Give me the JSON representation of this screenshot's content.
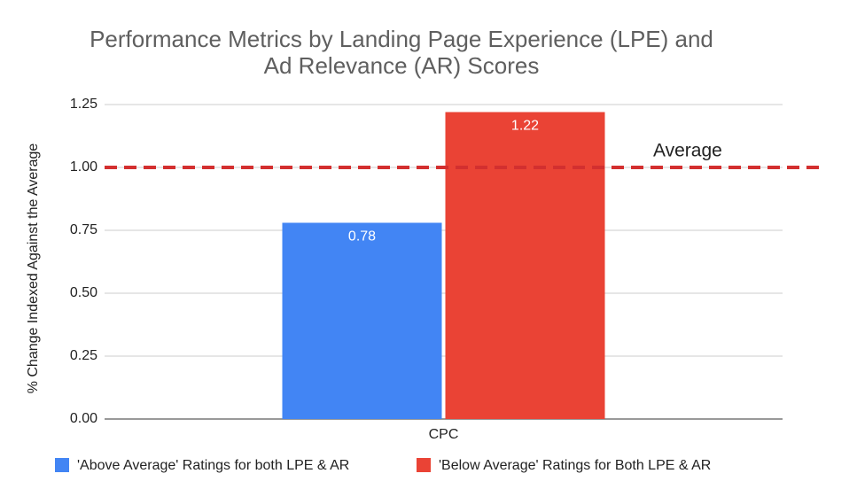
{
  "chart_data": {
    "type": "bar",
    "title": [
      "Performance Metrics by Landing Page Experience (LPE) and",
      "Ad Relevance (AR) Scores"
    ],
    "y_label": "% Change Indexed Against the Average",
    "categories": [
      "CPC"
    ],
    "series": [
      {
        "name": "'Above Average' Ratings for both LPE & AR",
        "color": "#4285f4",
        "values": [
          0.78
        ]
      },
      {
        "name": "'Below Average' Ratings for Both LPE & AR",
        "color": "#ea4335",
        "values": [
          1.22
        ]
      }
    ],
    "ylim": [
      0,
      1.25
    ],
    "yticks": [
      {
        "value": 0,
        "label": "0.00"
      },
      {
        "value": 0.25,
        "label": "0.25"
      },
      {
        "value": 0.5,
        "label": "0.50"
      },
      {
        "value": 0.75,
        "label": "0.75"
      },
      {
        "value": 1,
        "label": "1.00"
      },
      {
        "value": 1.25,
        "label": "1.25"
      }
    ],
    "grid": true,
    "reference_line": {
      "value": 1,
      "label": "Average",
      "color": "#d32f2f"
    },
    "legend": "bottom"
  }
}
